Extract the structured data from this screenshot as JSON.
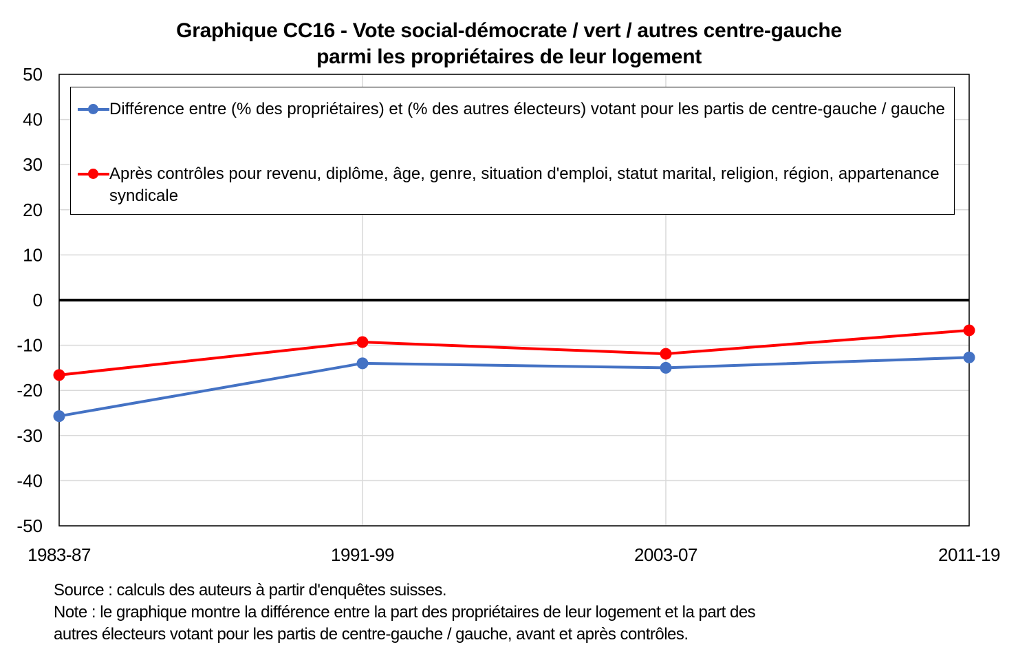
{
  "title_line1": "Graphique CC16 - Vote social-démocrate / vert / autres centre-gauche",
  "title_line2": "parmi les propriétaires de leur logement",
  "chart_data": {
    "type": "line",
    "categories": [
      "1983-87",
      "1991-99",
      "2003-07",
      "2011-19"
    ],
    "ylim": [
      -50,
      50
    ],
    "yticks": [
      50,
      40,
      30,
      20,
      10,
      0,
      -10,
      -20,
      -30,
      -40,
      -50
    ],
    "grid": true,
    "zero_line": true,
    "legend_position": "top",
    "series": [
      {
        "name": "Différence entre (% des propriétaires) et (% des autres électeurs) votant pour les partis de centre-gauche / gauche",
        "color": "#4472C4",
        "values": [
          -25.7,
          -14.0,
          -15.0,
          -12.7
        ]
      },
      {
        "name": "Après contrôles pour revenu, diplôme, âge, genre, situation d'emploi, statut marital, religion, région, appartenance syndicale",
        "color": "#FF0000",
        "values": [
          -16.6,
          -9.3,
          -11.9,
          -6.7
        ]
      }
    ]
  },
  "notes": {
    "source": "Source : calculs des auteurs à partir d'enquêtes suisses.",
    "note_line1": "Note : le graphique montre la différence entre la part des propriétaires de leur logement et la part des",
    "note_line2": "autres électeurs votant pour les partis de centre-gauche / gauche, avant et après contrôles."
  }
}
